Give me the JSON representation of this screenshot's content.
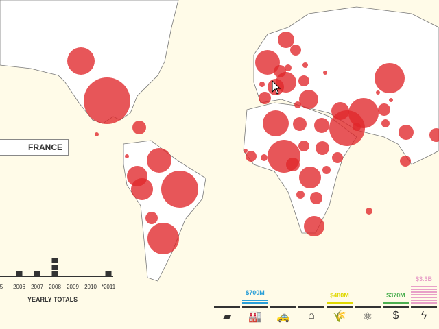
{
  "selected_country": "FRANCE",
  "timeline": {
    "title": "YEARLY TOTALS",
    "years": [
      "5",
      "2006",
      "2007",
      "2008",
      "2009",
      "2010",
      "*2011"
    ],
    "counts": [
      0,
      1,
      1,
      3,
      0,
      0,
      1
    ]
  },
  "categories": [
    {
      "icon": "gold-bar-icon",
      "glyph": "▰",
      "amount": "",
      "color": "#333333",
      "stripes": 0
    },
    {
      "icon": "factory-icon",
      "glyph": "🏭",
      "amount": "$700M",
      "color": "#2a9fd8",
      "stripes": 2
    },
    {
      "icon": "vehicles-icon",
      "glyph": "🚕",
      "amount": "",
      "color": "#333333",
      "stripes": 0
    },
    {
      "icon": "houses-icon",
      "glyph": "⌂",
      "amount": "",
      "color": "#333333",
      "stripes": 0
    },
    {
      "icon": "wheat-icon",
      "glyph": "🌾",
      "amount": "$480M",
      "color": "#e0d800",
      "stripes": 1
    },
    {
      "icon": "atom-icon",
      "glyph": "⚛",
      "amount": "",
      "color": "#333333",
      "stripes": 0
    },
    {
      "icon": "dollar-icon",
      "glyph": "$",
      "amount": "$370M",
      "color": "#4caf50",
      "stripes": 1
    },
    {
      "icon": "lightning-icon",
      "glyph": "ϟ",
      "amount": "$3.3B",
      "color": "#e8a0c8",
      "stripes": 7
    }
  ],
  "colors": {
    "bubble": "#e0262a",
    "ocean": "#fffbe8",
    "land": "#ffffff"
  }
}
